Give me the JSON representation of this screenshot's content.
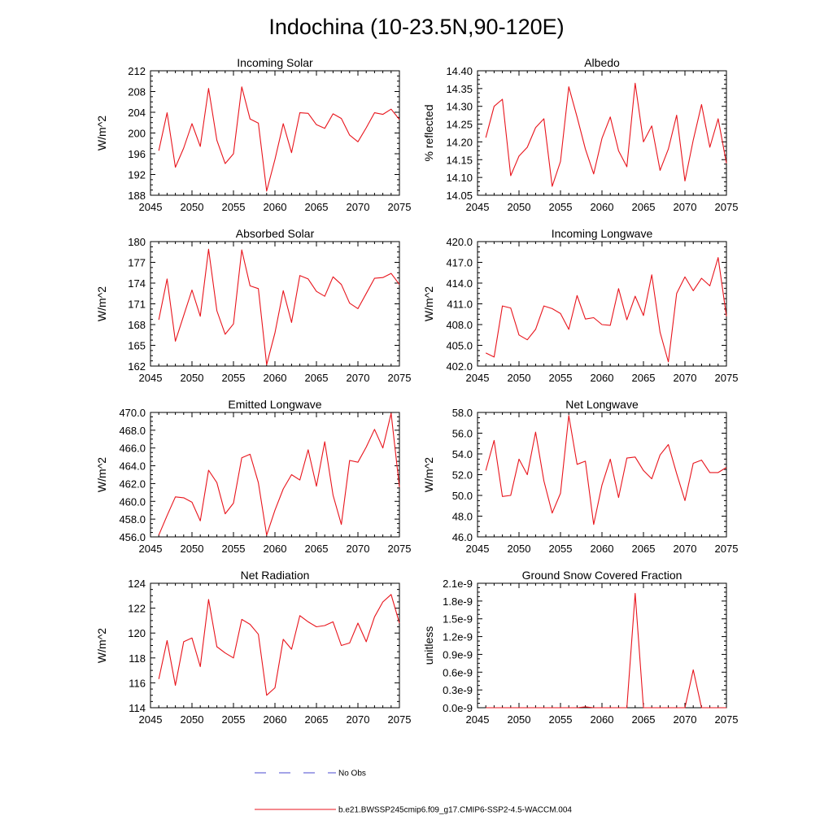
{
  "title": "Indochina (10-23.5N,90-120E)",
  "colors": {
    "model_line": "#e8141c",
    "obs_line": "#4a4ad0",
    "axis": "#000000"
  },
  "legend": {
    "obs_label": "No Obs",
    "model_label": "b.e21.BWSSP245cmip6.f09_g17.CMIP6-SSP2-4.5-WACCM.004"
  },
  "chart_data": [
    {
      "type": "line",
      "title": "Incoming Solar",
      "ylabel": "W/m^2",
      "xlim": [
        2045,
        2075
      ],
      "ylim": [
        188,
        212
      ],
      "x_ticks": [
        2045,
        2050,
        2055,
        2060,
        2065,
        2070,
        2075
      ],
      "y_ticks": [
        "188",
        "192",
        "196",
        "200",
        "204",
        "208",
        "212"
      ],
      "x": [
        2046,
        2047,
        2048,
        2049,
        2050,
        2051,
        2052,
        2053,
        2054,
        2055,
        2056,
        2057,
        2058,
        2059,
        2060,
        2061,
        2062,
        2063,
        2064,
        2065,
        2066,
        2067,
        2068,
        2069,
        2070,
        2071,
        2072,
        2073,
        2074,
        2075
      ],
      "values": [
        196.6,
        203.9,
        193.4,
        197.1,
        201.8,
        197.4,
        208.6,
        198.6,
        194.1,
        196.0,
        208.9,
        202.7,
        201.9,
        188.8,
        194.9,
        201.8,
        196.2,
        203.9,
        203.8,
        201.6,
        200.9,
        203.7,
        202.8,
        199.6,
        198.3,
        201.0,
        203.9,
        203.6,
        204.6,
        202.6
      ]
    },
    {
      "type": "line",
      "title": "Albedo",
      "ylabel": "% reflected",
      "xlim": [
        2045,
        2075
      ],
      "ylim": [
        14.05,
        14.4
      ],
      "x_ticks": [
        2045,
        2050,
        2055,
        2060,
        2065,
        2070,
        2075
      ],
      "y_ticks": [
        "14.05",
        "14.10",
        "14.15",
        "14.20",
        "14.25",
        "14.30",
        "14.35",
        "14.40"
      ],
      "x": [
        2046,
        2047,
        2048,
        2049,
        2050,
        2051,
        2052,
        2053,
        2054,
        2055,
        2056,
        2057,
        2058,
        2059,
        2060,
        2061,
        2062,
        2063,
        2064,
        2065,
        2066,
        2067,
        2068,
        2069,
        2070,
        2071,
        2072,
        2073,
        2074,
        2075
      ],
      "values": [
        14.212,
        14.3,
        14.32,
        14.105,
        14.16,
        14.185,
        14.24,
        14.265,
        14.075,
        14.145,
        14.355,
        14.27,
        14.18,
        14.11,
        14.21,
        14.27,
        14.175,
        14.13,
        14.365,
        14.2,
        14.245,
        14.12,
        14.18,
        14.275,
        14.09,
        14.205,
        14.305,
        14.185,
        14.265,
        14.14
      ]
    },
    {
      "type": "line",
      "title": "Absorbed Solar",
      "ylabel": "W/m^2",
      "xlim": [
        2045,
        2075
      ],
      "ylim": [
        162,
        180
      ],
      "x_ticks": [
        2045,
        2050,
        2055,
        2060,
        2065,
        2070,
        2075
      ],
      "y_ticks": [
        "162",
        "165",
        "168",
        "171",
        "174",
        "177",
        "180"
      ],
      "x": [
        2046,
        2047,
        2048,
        2049,
        2050,
        2051,
        2052,
        2053,
        2054,
        2055,
        2056,
        2057,
        2058,
        2059,
        2060,
        2061,
        2062,
        2063,
        2064,
        2065,
        2066,
        2067,
        2068,
        2069,
        2070,
        2071,
        2072,
        2073,
        2074,
        2075
      ],
      "values": [
        168.7,
        174.6,
        165.6,
        169.3,
        173.0,
        169.2,
        178.9,
        170.0,
        166.6,
        168.1,
        178.8,
        173.6,
        173.2,
        162.2,
        166.8,
        172.9,
        168.3,
        175.1,
        174.6,
        172.8,
        172.1,
        174.9,
        173.8,
        171.1,
        170.3,
        172.5,
        174.7,
        174.8,
        175.4,
        173.8
      ]
    },
    {
      "type": "line",
      "title": "Incoming Longwave",
      "ylabel": "W/m^2",
      "xlim": [
        2045,
        2075
      ],
      "ylim": [
        402,
        420
      ],
      "x_ticks": [
        2045,
        2050,
        2055,
        2060,
        2065,
        2070,
        2075
      ],
      "y_ticks": [
        "402.0",
        "405.0",
        "408.0",
        "411.0",
        "414.0",
        "417.0",
        "420.0"
      ],
      "x": [
        2046,
        2047,
        2048,
        2049,
        2050,
        2051,
        2052,
        2053,
        2054,
        2055,
        2056,
        2057,
        2058,
        2059,
        2060,
        2061,
        2062,
        2063,
        2064,
        2065,
        2066,
        2067,
        2068,
        2069,
        2070,
        2071,
        2072,
        2073,
        2074,
        2075
      ],
      "values": [
        403.9,
        403.3,
        410.7,
        410.4,
        406.5,
        405.8,
        407.3,
        410.7,
        410.3,
        409.6,
        407.3,
        412.2,
        408.8,
        409.0,
        408.0,
        407.9,
        413.2,
        408.7,
        412.1,
        409.3,
        415.2,
        406.9,
        402.6,
        412.5,
        414.9,
        412.9,
        414.7,
        413.6,
        417.7,
        409.2
      ]
    },
    {
      "type": "line",
      "title": "Emitted Longwave",
      "ylabel": "W/m^2",
      "xlim": [
        2045,
        2075
      ],
      "ylim": [
        456,
        470
      ],
      "x_ticks": [
        2045,
        2050,
        2055,
        2060,
        2065,
        2070,
        2075
      ],
      "y_ticks": [
        "456.0",
        "458.0",
        "460.0",
        "462.0",
        "464.0",
        "466.0",
        "468.0",
        "470.0"
      ],
      "x": [
        2046,
        2047,
        2048,
        2049,
        2050,
        2051,
        2052,
        2053,
        2054,
        2055,
        2056,
        2057,
        2058,
        2059,
        2060,
        2061,
        2062,
        2063,
        2064,
        2065,
        2066,
        2067,
        2068,
        2069,
        2070,
        2071,
        2072,
        2073,
        2074,
        2075
      ],
      "values": [
        456.2,
        458.4,
        460.5,
        460.4,
        459.9,
        457.8,
        463.5,
        462.1,
        458.6,
        459.8,
        464.9,
        465.3,
        462.1,
        456.2,
        459.0,
        461.4,
        463.0,
        462.4,
        465.8,
        461.7,
        466.7,
        460.7,
        457.4,
        464.6,
        464.4,
        466.1,
        468.1,
        466.0,
        469.9,
        461.6
      ]
    },
    {
      "type": "line",
      "title": "Net Longwave",
      "ylabel": "W/m^2",
      "xlim": [
        2045,
        2075
      ],
      "ylim": [
        46,
        58
      ],
      "x_ticks": [
        2045,
        2050,
        2055,
        2060,
        2065,
        2070,
        2075
      ],
      "y_ticks": [
        "46.0",
        "48.0",
        "50.0",
        "52.0",
        "54.0",
        "56.0",
        "58.0"
      ],
      "x": [
        2046,
        2047,
        2048,
        2049,
        2050,
        2051,
        2052,
        2053,
        2054,
        2055,
        2056,
        2057,
        2058,
        2059,
        2060,
        2061,
        2062,
        2063,
        2064,
        2065,
        2066,
        2067,
        2068,
        2069,
        2070,
        2071,
        2072,
        2073,
        2074,
        2075
      ],
      "values": [
        52.4,
        55.3,
        49.9,
        50.0,
        53.5,
        52.0,
        56.1,
        51.4,
        48.3,
        50.2,
        57.7,
        53.0,
        53.3,
        47.2,
        51.0,
        53.5,
        49.8,
        53.6,
        53.7,
        52.4,
        51.6,
        53.9,
        54.9,
        52.1,
        49.5,
        53.1,
        53.4,
        52.2,
        52.2,
        52.7
      ]
    },
    {
      "type": "line",
      "title": "Net Radiation",
      "ylabel": "W/m^2",
      "xlim": [
        2045,
        2075
      ],
      "ylim": [
        114,
        124
      ],
      "x_ticks": [
        2045,
        2050,
        2055,
        2060,
        2065,
        2070,
        2075
      ],
      "y_ticks": [
        "114",
        "116",
        "118",
        "120",
        "122",
        "124"
      ],
      "x": [
        2046,
        2047,
        2048,
        2049,
        2050,
        2051,
        2052,
        2053,
        2054,
        2055,
        2056,
        2057,
        2058,
        2059,
        2060,
        2061,
        2062,
        2063,
        2064,
        2065,
        2066,
        2067,
        2068,
        2069,
        2070,
        2071,
        2072,
        2073,
        2074,
        2075
      ],
      "values": [
        116.3,
        119.4,
        115.8,
        119.3,
        119.6,
        117.3,
        122.7,
        118.9,
        118.4,
        118.0,
        121.1,
        120.7,
        119.9,
        115.0,
        115.6,
        119.5,
        118.7,
        121.4,
        120.9,
        120.5,
        120.6,
        120.9,
        119.0,
        119.2,
        120.8,
        119.3,
        121.3,
        122.5,
        123.1,
        120.8
      ]
    },
    {
      "type": "line",
      "title": "Ground Snow Covered Fraction",
      "ylabel": "unitless",
      "xlim": [
        2045,
        2075
      ],
      "ylim": [
        0,
        2.1e-09
      ],
      "x_ticks": [
        2045,
        2050,
        2055,
        2060,
        2065,
        2070,
        2075
      ],
      "y_ticks": [
        "0.0e-9",
        "0.3e-9",
        "0.6e-9",
        "0.9e-9",
        "1.2e-9",
        "1.5e-9",
        "1.8e-9",
        "2.1e-9"
      ],
      "x": [
        2046,
        2047,
        2048,
        2049,
        2050,
        2051,
        2052,
        2053,
        2054,
        2055,
        2056,
        2057,
        2058,
        2059,
        2060,
        2061,
        2062,
        2063,
        2064,
        2065,
        2066,
        2067,
        2068,
        2069,
        2070,
        2071,
        2072,
        2073,
        2074,
        2075
      ],
      "values": [
        0,
        0,
        0,
        0,
        0,
        0,
        0,
        0,
        0,
        0,
        0,
        0,
        1.5e-11,
        0,
        0,
        0,
        0,
        0,
        1.93e-09,
        0,
        0,
        0,
        0,
        0,
        0,
        6.4e-10,
        0,
        0,
        0,
        0
      ]
    }
  ]
}
